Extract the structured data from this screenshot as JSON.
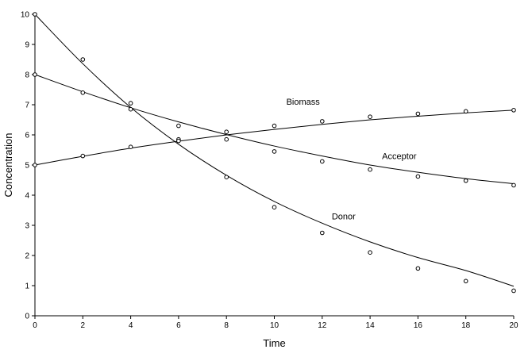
{
  "chart_data": {
    "type": "line",
    "xlabel": "Time",
    "ylabel": "Concentration",
    "xlim": [
      0,
      20
    ],
    "ylim": [
      0,
      10
    ],
    "x_ticks": [
      0,
      2,
      4,
      6,
      8,
      10,
      12,
      14,
      16,
      18,
      20
    ],
    "y_ticks": [
      0,
      1,
      2,
      3,
      4,
      5,
      6,
      7,
      8,
      9,
      10
    ],
    "grid": false,
    "legend": "none",
    "colors": {
      "line": "#000000",
      "marker": "#000000",
      "background": "#ffffff"
    },
    "series": [
      {
        "name": "Biomass",
        "label_at": [
          10.5,
          7.0
        ],
        "points": [
          [
            0,
            5.0
          ],
          [
            2,
            5.3
          ],
          [
            4,
            5.6
          ],
          [
            6,
            5.85
          ],
          [
            8,
            6.1
          ],
          [
            10,
            6.3
          ],
          [
            12,
            6.45
          ],
          [
            14,
            6.6
          ],
          [
            16,
            6.7
          ],
          [
            18,
            6.78
          ],
          [
            20,
            6.82
          ]
        ],
        "fit": [
          [
            0,
            5.0
          ],
          [
            2,
            5.29
          ],
          [
            4,
            5.56
          ],
          [
            6,
            5.79
          ],
          [
            8,
            6.0
          ],
          [
            10,
            6.18
          ],
          [
            12,
            6.35
          ],
          [
            14,
            6.5
          ],
          [
            16,
            6.62
          ],
          [
            18,
            6.73
          ],
          [
            20,
            6.82
          ]
        ]
      },
      {
        "name": "Acceptor",
        "label_at": [
          14.5,
          5.2
        ],
        "points": [
          [
            0,
            8.0
          ],
          [
            2,
            7.4
          ],
          [
            4,
            6.85
          ],
          [
            6,
            6.3
          ],
          [
            8,
            5.85
          ],
          [
            10,
            5.45
          ],
          [
            12,
            5.12
          ],
          [
            14,
            4.85
          ],
          [
            16,
            4.62
          ],
          [
            18,
            4.48
          ],
          [
            20,
            4.33
          ]
        ],
        "fit": [
          [
            0,
            8.0
          ],
          [
            2,
            7.43
          ],
          [
            4,
            6.9
          ],
          [
            6,
            6.43
          ],
          [
            8,
            6.01
          ],
          [
            10,
            5.63
          ],
          [
            12,
            5.3
          ],
          [
            14,
            5.0
          ],
          [
            16,
            4.76
          ],
          [
            18,
            4.55
          ],
          [
            20,
            4.38
          ]
        ]
      },
      {
        "name": "Donor",
        "label_at": [
          12.4,
          3.2
        ],
        "points": [
          [
            0,
            10.0
          ],
          [
            2,
            8.5
          ],
          [
            4,
            7.05
          ],
          [
            6,
            5.8
          ],
          [
            8,
            4.6
          ],
          [
            10,
            3.6
          ],
          [
            12,
            2.75
          ],
          [
            14,
            2.1
          ],
          [
            16,
            1.57
          ],
          [
            18,
            1.15
          ],
          [
            20,
            0.83
          ]
        ],
        "fit": [
          [
            0,
            10.0
          ],
          [
            2,
            8.36
          ],
          [
            4,
            6.91
          ],
          [
            6,
            5.69
          ],
          [
            8,
            4.66
          ],
          [
            10,
            3.79
          ],
          [
            12,
            3.07
          ],
          [
            14,
            2.45
          ],
          [
            16,
            1.93
          ],
          [
            18,
            1.5
          ],
          [
            20,
            0.98
          ]
        ]
      }
    ]
  }
}
